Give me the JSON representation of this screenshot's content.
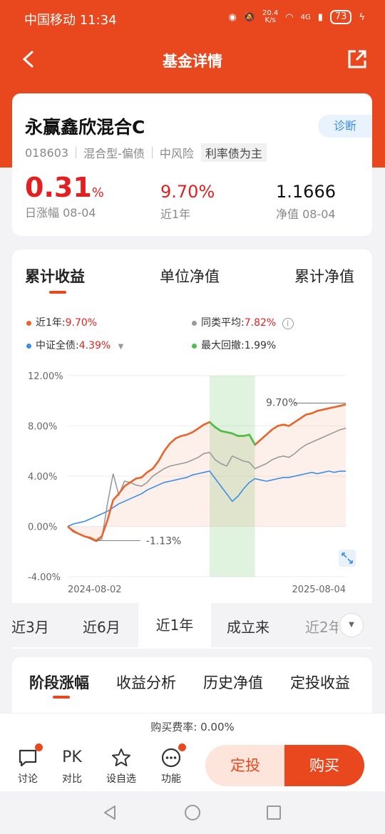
{
  "status": {
    "carrier": "中国移动",
    "time": "11:34",
    "speed_top": "20.4",
    "speed_bottom": "K/s",
    "network": "4G",
    "battery": "73"
  },
  "nav": {
    "title": "基金详情"
  },
  "fund": {
    "name": "永赢鑫欣混合C",
    "diagnose_label": "诊断",
    "code": "018603",
    "type": "混合型-偏债",
    "risk": "中风险",
    "tag": "利率债为主",
    "daily_change_value": "0.31",
    "daily_change_unit": "%",
    "daily_change_label": "日涨幅 08-04",
    "one_year_value": "9.70%",
    "one_year_label": "近1年",
    "nav_value": "1.1666",
    "nav_label": "净值 08-04"
  },
  "chart_tabs": [
    {
      "label": "累计收益",
      "active": true
    },
    {
      "label": "单位净值",
      "active": false
    },
    {
      "label": "累计净值",
      "active": false
    }
  ],
  "legend": {
    "fund_label": "近1年:",
    "fund_value": "9.70%",
    "peer_label": "同类平均:",
    "peer_value": "7.82%",
    "index_label": "中证全债:",
    "index_value": "4.39%",
    "drawdown_label": "最大回撤:",
    "drawdown_value": "1.99%"
  },
  "colors": {
    "accent": "#e9471d",
    "fund_line": "#e8642d",
    "peer_line": "#9a9a9a",
    "index_line": "#3b8ee8",
    "drawdown": "#4cbf4c"
  },
  "chart_data": {
    "type": "line",
    "x_start_label": "2024-08-02",
    "x_end_label": "2025-08-04",
    "y_tick_labels": [
      "12.00%",
      "8.00%",
      "4.00%",
      "0.00%",
      "-4.00%"
    ],
    "ylim": [
      -4,
      12
    ],
    "x_count": 50,
    "annotations": {
      "max_label": "9.70%",
      "min_label": "-1.13%"
    },
    "drawdown_window": [
      25,
      33
    ],
    "series": [
      {
        "name": "近1年",
        "values": [
          0,
          -0.4,
          -0.6,
          -0.8,
          -0.9,
          -1.13,
          -0.8,
          0.5,
          2.1,
          2.6,
          3.2,
          3.5,
          3.8,
          3.9,
          4.3,
          4.6,
          5.2,
          6.0,
          6.6,
          7.0,
          7.2,
          7.3,
          7.5,
          7.8,
          8.1,
          8.3,
          7.9,
          7.6,
          7.5,
          7.4,
          7.2,
          7.2,
          7.3,
          6.5,
          6.9,
          7.3,
          7.7,
          8.0,
          8.1,
          8.0,
          8.3,
          8.6,
          8.9,
          9.0,
          9.2,
          9.3,
          9.4,
          9.5,
          9.6,
          9.7
        ]
      },
      {
        "name": "同类平均",
        "values": [
          0,
          -0.3,
          -0.6,
          -0.8,
          -1.0,
          -1.2,
          -1.0,
          1.8,
          4.2,
          2.5,
          3.6,
          3.5,
          3.3,
          3.2,
          3.5,
          4.0,
          4.3,
          4.6,
          4.8,
          4.9,
          5.0,
          5.1,
          5.3,
          5.5,
          5.8,
          5.9,
          5.3,
          5.0,
          4.8,
          5.6,
          5.4,
          5.2,
          5.1,
          4.6,
          4.8,
          5.0,
          5.3,
          5.5,
          5.6,
          5.5,
          5.8,
          6.2,
          6.5,
          6.7,
          6.9,
          7.1,
          7.3,
          7.5,
          7.7,
          7.82
        ]
      },
      {
        "name": "中证全债",
        "values": [
          0,
          0.2,
          0.3,
          0.4,
          0.6,
          0.8,
          1.0,
          1.2,
          1.5,
          1.8,
          2.0,
          2.2,
          2.4,
          2.6,
          2.9,
          3.1,
          3.3,
          3.5,
          3.6,
          3.7,
          3.8,
          3.9,
          4.1,
          4.2,
          4.3,
          4.4,
          3.8,
          3.2,
          2.6,
          2.0,
          2.4,
          3.0,
          3.5,
          3.8,
          3.7,
          3.6,
          3.7,
          3.8,
          3.9,
          3.9,
          4.0,
          4.1,
          4.2,
          4.3,
          4.2,
          4.3,
          4.4,
          4.3,
          4.4,
          4.39
        ]
      }
    ]
  },
  "periods": [
    {
      "label": "近3月",
      "active": false
    },
    {
      "label": "近6月",
      "active": false
    },
    {
      "label": "近1年",
      "active": true
    },
    {
      "label": "成立来",
      "active": false
    },
    {
      "label": "近2年",
      "active": false
    }
  ],
  "section_tabs": [
    {
      "label": "阶段涨幅",
      "active": true
    },
    {
      "label": "收益分析",
      "active": false
    },
    {
      "label": "历史净值",
      "active": false
    },
    {
      "label": "定投收益",
      "active": false
    }
  ],
  "fee": {
    "label": "购买费率:",
    "value": "0.00%"
  },
  "bottom": {
    "discuss": "讨论",
    "compare_icon_text": "PK",
    "compare": "对比",
    "watch": "设自选",
    "functions": "功能",
    "auto_invest": "定投",
    "buy": "购买"
  }
}
